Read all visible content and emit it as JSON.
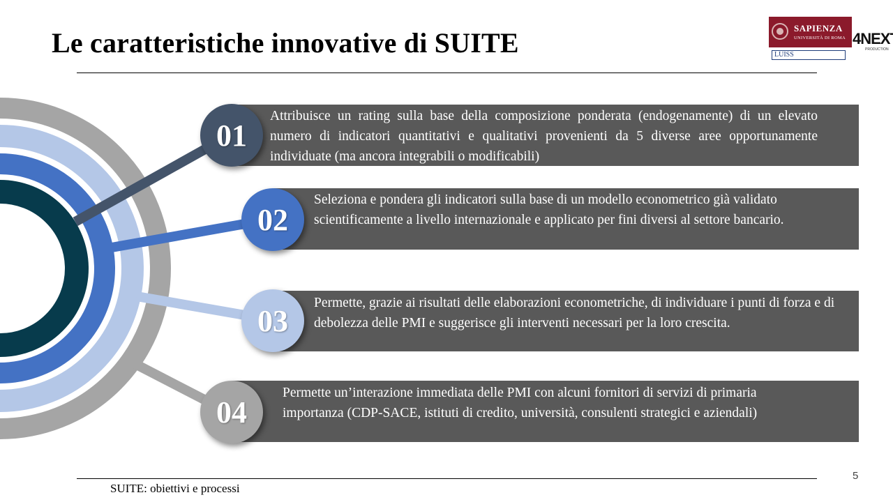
{
  "slide": {
    "title": "Le caratteristiche innovative di SUITE",
    "footer": "SUITE: obiettivi e processi",
    "page_number": "5"
  },
  "logos": {
    "sapienza": {
      "name": "SAPIENZA",
      "subtitle": "UNIVERSITÀ DI ROMA"
    },
    "luiss": {
      "name": "LUISS"
    },
    "next": {
      "name": "4NEXT",
      "subtitle": "PRODUCTION"
    }
  },
  "colors": {
    "item1": "#44546a",
    "item2": "#4472c4",
    "item3": "#b4c7e7",
    "item4": "#a5a5a5",
    "box": "#595959"
  },
  "items": [
    {
      "number": "01",
      "text": "Attribuisce un rating sulla base della composizione ponderata (endogenamente) di un elevato numero di indicatori quantitativi e qualitativi provenienti da 5 diverse aree opportunamente individuate (ma ancora integrabili o modificabili)"
    },
    {
      "number": "02",
      "text": "Seleziona  e pondera gli indicatori sulla base di un modello econometrico già validato scientificamente a livello internazionale e applicato per fini diversi al settore bancario."
    },
    {
      "number": "03",
      "text": "Permette, grazie ai risultati delle elaborazioni econometriche, di individuare i punti di forza e di debolezza delle PMI e suggerisce gli interventi necessari per la loro crescita."
    },
    {
      "number": "04",
      "text": "Permette un’interazione immediata delle PMI con alcuni fornitori di servizi di primaria importanza (CDP-SACE, istituti di credito, università, consulenti strategici e aziendali)"
    }
  ]
}
